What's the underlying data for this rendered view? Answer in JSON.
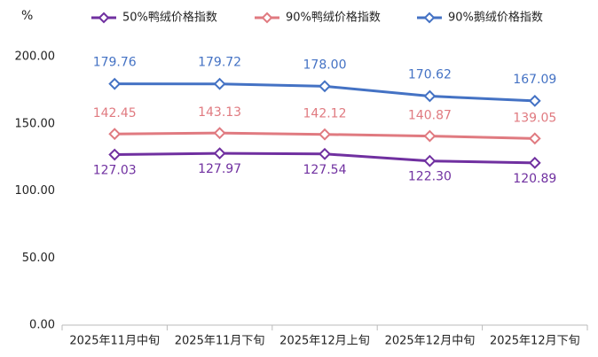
{
  "chart_data": {
    "type": "line",
    "y_unit": "%",
    "categories": [
      "2025年11月中旬",
      "2025年11月下旬",
      "2025年12月上旬",
      "2025年12月中旬",
      "2025年12月下旬"
    ],
    "series": [
      {
        "name": "50%鸭绒价格指数",
        "color": "#7030a0",
        "label_color": "#7030a0",
        "values": [
          127.03,
          127.97,
          127.54,
          122.3,
          120.89
        ],
        "value_labels": [
          "127.03",
          "127.97",
          "127.54",
          "122.30",
          "120.89"
        ]
      },
      {
        "name": "90%鸭绒价格指数",
        "color": "#e07a80",
        "label_color": "#e07a80",
        "values": [
          142.45,
          143.13,
          142.12,
          140.87,
          139.05
        ],
        "value_labels": [
          "142.45",
          "143.13",
          "142.12",
          "140.87",
          "139.05"
        ]
      },
      {
        "name": "90%鹅绒价格指数",
        "color": "#4472c4",
        "label_color": "#4472c4",
        "values": [
          179.76,
          179.72,
          178.0,
          170.62,
          167.09
        ],
        "value_labels": [
          "179.76",
          "179.72",
          "178.00",
          "170.62",
          "167.09"
        ]
      }
    ],
    "ylim": [
      0,
      200
    ],
    "yticks": [
      {
        "value": 0,
        "label": "0.00"
      },
      {
        "value": 50,
        "label": "50.00"
      },
      {
        "value": 100,
        "label": "100.00"
      },
      {
        "value": 150,
        "label": "150.00"
      },
      {
        "value": 200,
        "label": "200.00"
      }
    ],
    "grid": false,
    "legend": "top"
  }
}
